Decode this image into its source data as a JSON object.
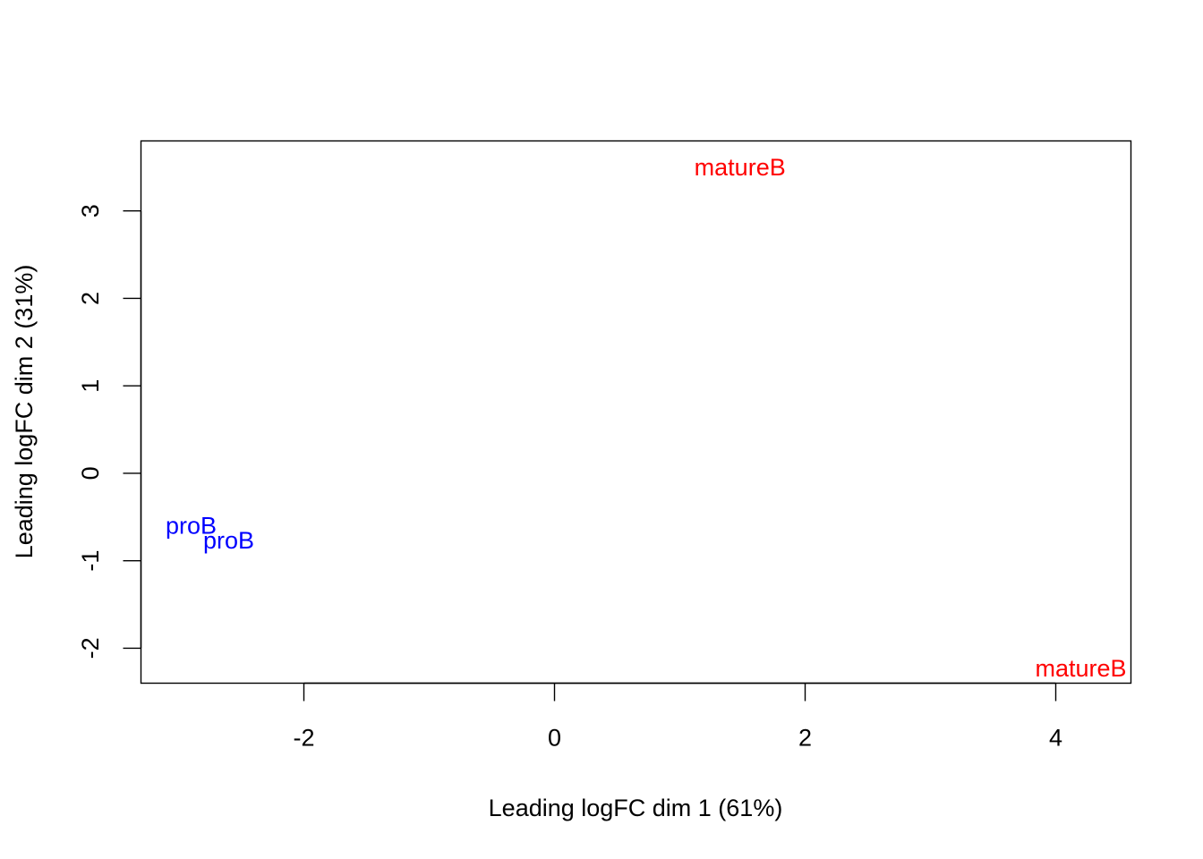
{
  "chart_data": {
    "type": "scatter",
    "xlabel": "Leading logFC dim 1 (61%)",
    "ylabel": "Leading logFC dim 2 (31%)",
    "xlim": [
      -3.3,
      4.6
    ],
    "ylim": [
      -2.4,
      3.8
    ],
    "x_ticks": [
      -2,
      0,
      2,
      4
    ],
    "y_ticks": [
      -2,
      -1,
      0,
      1,
      2,
      3
    ],
    "grid": false,
    "legend": "none",
    "points": [
      {
        "label": "proB",
        "x": -2.9,
        "y": -0.6,
        "group": "proB"
      },
      {
        "label": "proB",
        "x": -2.6,
        "y": -0.77,
        "group": "proB"
      },
      {
        "label": "matureB",
        "x": 1.48,
        "y": 3.5,
        "group": "matureB"
      },
      {
        "label": "matureB",
        "x": 4.2,
        "y": -2.23,
        "group": "matureB"
      }
    ],
    "colors": {
      "proB": "#0000ff",
      "matureB": "#ff0000"
    }
  }
}
